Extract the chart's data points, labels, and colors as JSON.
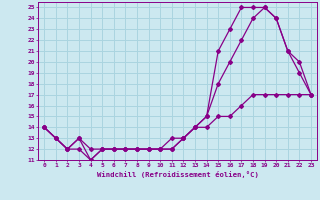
{
  "xlabel": "Windchill (Refroidissement éolien,°C)",
  "background_color": "#cce8f0",
  "grid_color": "#aad4e0",
  "line_color": "#880088",
  "xlim": [
    -0.5,
    23.5
  ],
  "ylim": [
    11,
    25.5
  ],
  "x_ticks": [
    0,
    1,
    2,
    3,
    4,
    5,
    6,
    7,
    8,
    9,
    10,
    11,
    12,
    13,
    14,
    15,
    16,
    17,
    18,
    19,
    20,
    21,
    22,
    23
  ],
  "y_ticks": [
    11,
    12,
    13,
    14,
    15,
    16,
    17,
    18,
    19,
    20,
    21,
    22,
    23,
    24,
    25
  ],
  "line1_x": [
    0,
    1,
    2,
    3,
    4,
    5,
    6,
    7,
    8,
    9,
    10,
    11,
    12,
    13,
    14,
    15,
    16,
    17,
    18,
    19,
    20,
    21,
    22,
    23
  ],
  "line1_y": [
    14,
    13,
    12,
    13,
    11,
    12,
    12,
    12,
    12,
    12,
    12,
    12,
    13,
    14,
    15,
    21,
    23,
    25,
    25,
    25,
    24,
    21,
    19,
    17
  ],
  "line2_x": [
    0,
    1,
    2,
    3,
    4,
    5,
    6,
    7,
    8,
    9,
    10,
    11,
    12,
    13,
    14,
    15,
    16,
    17,
    18,
    19,
    20,
    21,
    22,
    23
  ],
  "line2_y": [
    14,
    13,
    12,
    13,
    12,
    12,
    12,
    12,
    12,
    12,
    12,
    13,
    13,
    14,
    15,
    18,
    20,
    22,
    24,
    25,
    24,
    21,
    20,
    17
  ],
  "line3_x": [
    0,
    1,
    2,
    3,
    4,
    5,
    6,
    7,
    8,
    9,
    10,
    11,
    12,
    13,
    14,
    15,
    16,
    17,
    18,
    19,
    20,
    21,
    22,
    23
  ],
  "line3_y": [
    14,
    13,
    12,
    12,
    11,
    12,
    12,
    12,
    12,
    12,
    12,
    12,
    13,
    14,
    14,
    15,
    15,
    16,
    17,
    17,
    17,
    17,
    17,
    17
  ]
}
